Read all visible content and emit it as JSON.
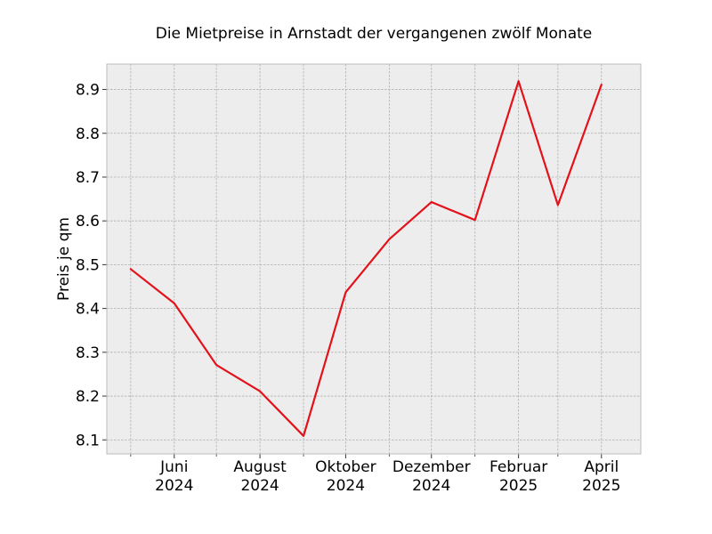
{
  "chart_data": {
    "type": "line",
    "title": "Die Mietpreise in Arnstadt der vergangenen zwölf Monate",
    "xlabel": "",
    "ylabel": "Preis je qm",
    "x": [
      "2024-05",
      "2024-06",
      "2024-07",
      "2024-08",
      "2024-09",
      "2024-10",
      "2024-11",
      "2024-12",
      "2025-01",
      "2025-02",
      "2025-03",
      "2025-04"
    ],
    "series": [
      {
        "values": [
          8.49,
          8.412,
          8.271,
          8.211,
          8.109,
          8.437,
          8.558,
          8.643,
          8.602,
          8.919,
          8.636,
          8.911
        ],
        "color": "#e3121a"
      }
    ],
    "x_ticks": [
      {
        "x": "2024-06",
        "month": "Juni",
        "year": "2024"
      },
      {
        "x": "2024-08",
        "month": "August",
        "year": "2024"
      },
      {
        "x": "2024-10",
        "month": "Oktober",
        "year": "2024"
      },
      {
        "x": "2024-12",
        "month": "Dezember",
        "year": "2024"
      },
      {
        "x": "2025-02",
        "month": "Februar",
        "year": "2025"
      },
      {
        "x": "2025-04",
        "month": "April",
        "year": "2025"
      }
    ],
    "x_minor_ticks": [
      "2024-05",
      "2024-07",
      "2024-09",
      "2024-11",
      "2025-01",
      "2025-03"
    ],
    "xlim": [
      "2024-04-14",
      "2025-04-29"
    ],
    "y_ticks": [
      "8.1",
      "8.2",
      "8.3",
      "8.4",
      "8.5",
      "8.6",
      "8.7",
      "8.8",
      "8.9"
    ],
    "ylim": [
      8.068,
      8.958
    ],
    "grid": true,
    "colors": {
      "plot_background": "#ededed",
      "grid": "#b0b0b0",
      "frame": "#bcbcbc",
      "line": "#e3121a"
    }
  }
}
